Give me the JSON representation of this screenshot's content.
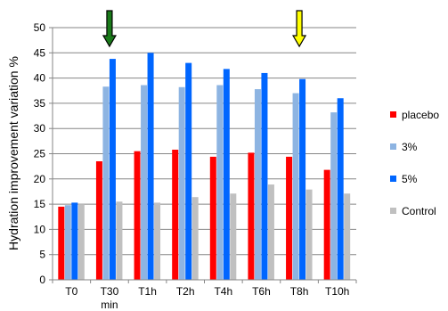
{
  "chart_data": {
    "type": "bar",
    "title": "",
    "xlabel": "",
    "ylabel": "Hydration improvement variation %",
    "categories": [
      "T0",
      "T30 min",
      "T1h",
      "T2h",
      "T4h",
      "T6h",
      "T8h",
      "T10h"
    ],
    "category_lines": [
      [
        "T0"
      ],
      [
        "T30",
        "min"
      ],
      [
        "T1h"
      ],
      [
        "T2h"
      ],
      [
        "T4h"
      ],
      [
        "T6h"
      ],
      [
        "T8h"
      ],
      [
        "T10h"
      ]
    ],
    "ylim": [
      0,
      50
    ],
    "yticks": [
      0,
      5,
      10,
      15,
      20,
      25,
      30,
      35,
      40,
      45,
      50
    ],
    "grid": true,
    "legend_position": "right",
    "series": [
      {
        "name": "placebo",
        "color": "#ff0000",
        "values": [
          14.5,
          23.5,
          25.5,
          25.8,
          24.4,
          25.2,
          24.4,
          21.8
        ]
      },
      {
        "name": "3%",
        "color": "#8db4e2",
        "values": [
          14.8,
          38.3,
          38.6,
          38.2,
          38.6,
          37.8,
          37.0,
          33.2
        ]
      },
      {
        "name": "5%",
        "color": "#0066ff",
        "values": [
          15.3,
          43.8,
          45.0,
          43.0,
          41.8,
          41.0,
          39.8,
          36.0
        ]
      },
      {
        "name": "Control",
        "color": "#c0c0c0",
        "values": [
          15.0,
          15.5,
          15.3,
          16.4,
          17.1,
          18.9,
          17.9,
          17.1
        ]
      }
    ],
    "annotations": [
      {
        "type": "arrow",
        "category": "T30 min",
        "color": "#1a7a1a",
        "direction": "down"
      },
      {
        "type": "arrow",
        "category": "T8h",
        "color": "#ffff00",
        "direction": "down"
      }
    ]
  }
}
